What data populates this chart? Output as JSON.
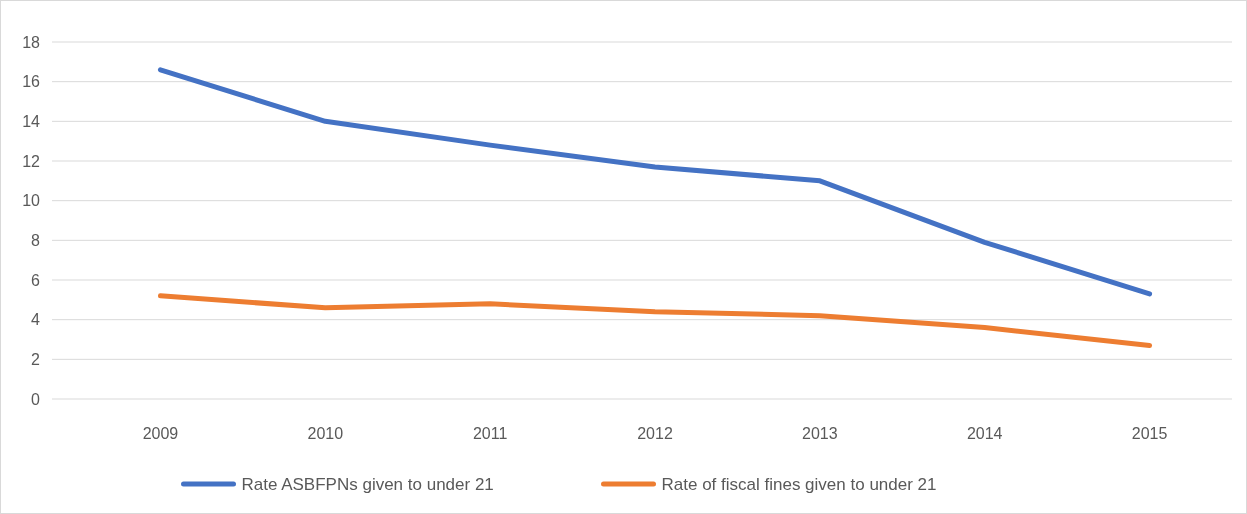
{
  "chart_data": {
    "type": "line",
    "categories": [
      "2009",
      "2010",
      "2011",
      "2012",
      "2013",
      "2014",
      "2015"
    ],
    "series": [
      {
        "name": "Rate ASBFPNs given to under 21",
        "color": "#4472c4",
        "values": [
          16.6,
          14.0,
          12.8,
          11.7,
          11.0,
          7.9,
          5.3
        ]
      },
      {
        "name": "Rate of fiscal fines given to under 21",
        "color": "#ed7d31",
        "values": [
          5.2,
          4.6,
          4.8,
          4.4,
          4.2,
          3.6,
          2.7
        ]
      }
    ],
    "ylim": [
      0,
      18
    ],
    "yticks": [
      0,
      2,
      4,
      6,
      8,
      10,
      12,
      14,
      16,
      18
    ],
    "grid": "y",
    "legend": "bottom",
    "marker": "none",
    "line_style": "solid"
  }
}
